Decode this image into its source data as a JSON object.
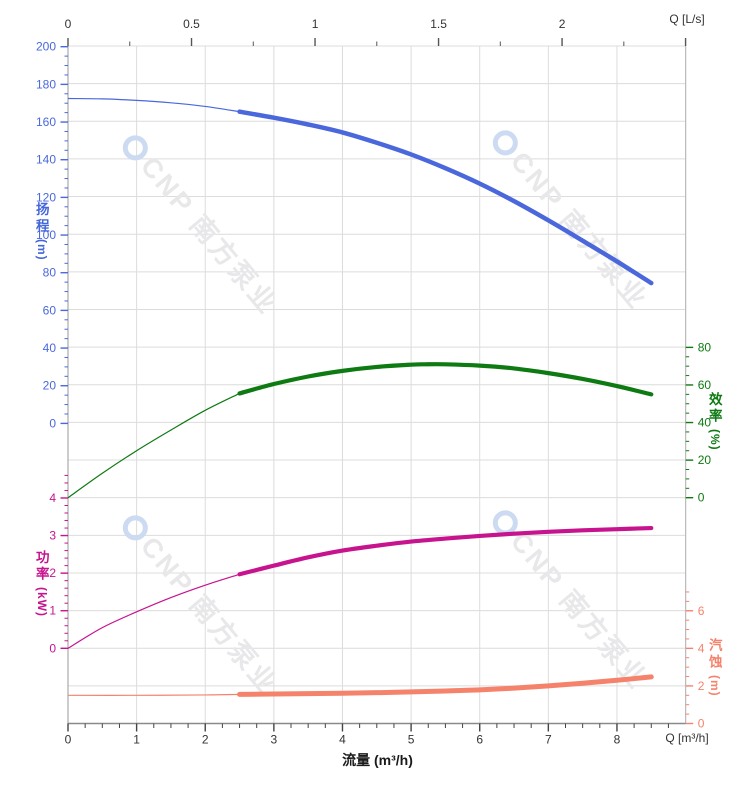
{
  "watermark": {
    "text": "CNP 南方泵业",
    "logo_color": "#ccdbf2",
    "text_color": "#e8e8eb"
  },
  "axes": {
    "top": {
      "label": "Q [L/s]"
    },
    "bottom": {
      "label": "Q [m³/h]",
      "title": "流量 (m³/h)"
    },
    "head": {
      "title": "扬程",
      "unit": "(m)",
      "color": "#4466d8"
    },
    "power": {
      "title": "功率",
      "unit": "(kW)",
      "color": "#c7138e"
    },
    "efficiency": {
      "title": "效率",
      "unit": "(%)",
      "color": "#0e7a12"
    },
    "npsh": {
      "title": "汽蚀",
      "unit": "(m)",
      "color": "#f5836c"
    }
  },
  "chart_data": {
    "type": "line",
    "grid": true,
    "x": {
      "label": "流量 (m³/h)",
      "unit": "m³/h",
      "range": [
        0,
        9
      ],
      "ticks": [
        0,
        1,
        2,
        3,
        4,
        5,
        6,
        7,
        8
      ],
      "end_label": "Q [m³/h]"
    },
    "x_secondary": {
      "label": "Q [L/s]",
      "unit": "L/s",
      "range": [
        0,
        2.5
      ],
      "ticks": [
        0,
        0.5,
        1,
        1.5,
        2
      ]
    },
    "rated_range": [
      2.5,
      8.5
    ],
    "series": [
      {
        "id": "head",
        "name": "扬程",
        "unit": "m",
        "color": "#4a68dc",
        "axis_side": "left",
        "axis_ticks": [
          200,
          180,
          160,
          140,
          120,
          100,
          80,
          60,
          40,
          20,
          0
        ],
        "axis_range": [
          0,
          200
        ],
        "points": [
          [
            0,
            172.5
          ],
          [
            0.5,
            172.3
          ],
          [
            1,
            171.5
          ],
          [
            1.5,
            170.2
          ],
          [
            2,
            168.3
          ],
          [
            2.5,
            165.5
          ],
          [
            3,
            162.3
          ],
          [
            3.5,
            158.7
          ],
          [
            4,
            154.5
          ],
          [
            4.5,
            149
          ],
          [
            5,
            142.8
          ],
          [
            5.5,
            135.5
          ],
          [
            6,
            127.3
          ],
          [
            6.5,
            118
          ],
          [
            7,
            107.8
          ],
          [
            7.5,
            97
          ],
          [
            8,
            86
          ],
          [
            8.5,
            74.5
          ]
        ]
      },
      {
        "id": "efficiency",
        "name": "效率",
        "unit": "%",
        "color": "#0e7a12",
        "axis_side": "right",
        "axis_ticks": [
          80,
          60,
          40,
          20,
          0
        ],
        "axis_range": [
          0,
          80
        ],
        "points": [
          [
            0,
            0
          ],
          [
            0.5,
            13
          ],
          [
            1,
            25
          ],
          [
            1.5,
            36
          ],
          [
            2,
            46.5
          ],
          [
            2.5,
            55.5
          ],
          [
            3,
            60.5
          ],
          [
            3.5,
            64.5
          ],
          [
            4,
            67.5
          ],
          [
            4.5,
            69.6
          ],
          [
            5,
            70.8
          ],
          [
            5.2,
            71
          ],
          [
            5.5,
            71
          ],
          [
            6,
            70.3
          ],
          [
            6.5,
            68.8
          ],
          [
            7,
            66.3
          ],
          [
            7.5,
            63.2
          ],
          [
            8,
            59.4
          ],
          [
            8.5,
            55
          ]
        ]
      },
      {
        "id": "power",
        "name": "功率",
        "unit": "kW",
        "color": "#c7138e",
        "axis_side": "left",
        "axis_ticks": [
          4,
          3,
          2,
          1,
          0
        ],
        "axis_range": [
          0,
          4
        ],
        "points": [
          [
            0,
            0
          ],
          [
            0.5,
            0.55
          ],
          [
            1,
            0.97
          ],
          [
            1.5,
            1.35
          ],
          [
            2,
            1.68
          ],
          [
            2.5,
            1.97
          ],
          [
            3,
            2.2
          ],
          [
            3.5,
            2.42
          ],
          [
            4,
            2.6
          ],
          [
            4.5,
            2.73
          ],
          [
            5,
            2.84
          ],
          [
            5.5,
            2.92
          ],
          [
            6,
            2.99
          ],
          [
            6.5,
            3.05
          ],
          [
            7,
            3.1
          ],
          [
            7.5,
            3.14
          ],
          [
            8,
            3.17
          ],
          [
            8.5,
            3.2
          ]
        ]
      },
      {
        "id": "npsh",
        "name": "汽蚀",
        "unit": "m",
        "color": "#f5836c",
        "axis_side": "right",
        "axis_ticks": [
          6,
          4,
          2,
          0
        ],
        "axis_range": [
          0,
          6
        ],
        "points": [
          [
            0,
            1.5
          ],
          [
            1,
            1.5
          ],
          [
            2,
            1.52
          ],
          [
            2.5,
            1.55
          ],
          [
            3,
            1.57
          ],
          [
            3.5,
            1.59
          ],
          [
            4,
            1.61
          ],
          [
            4.5,
            1.64
          ],
          [
            5,
            1.68
          ],
          [
            5.5,
            1.73
          ],
          [
            6,
            1.79
          ],
          [
            6.5,
            1.88
          ],
          [
            7,
            2.0
          ],
          [
            7.5,
            2.14
          ],
          [
            8,
            2.3
          ],
          [
            8.5,
            2.48
          ]
        ]
      }
    ]
  }
}
